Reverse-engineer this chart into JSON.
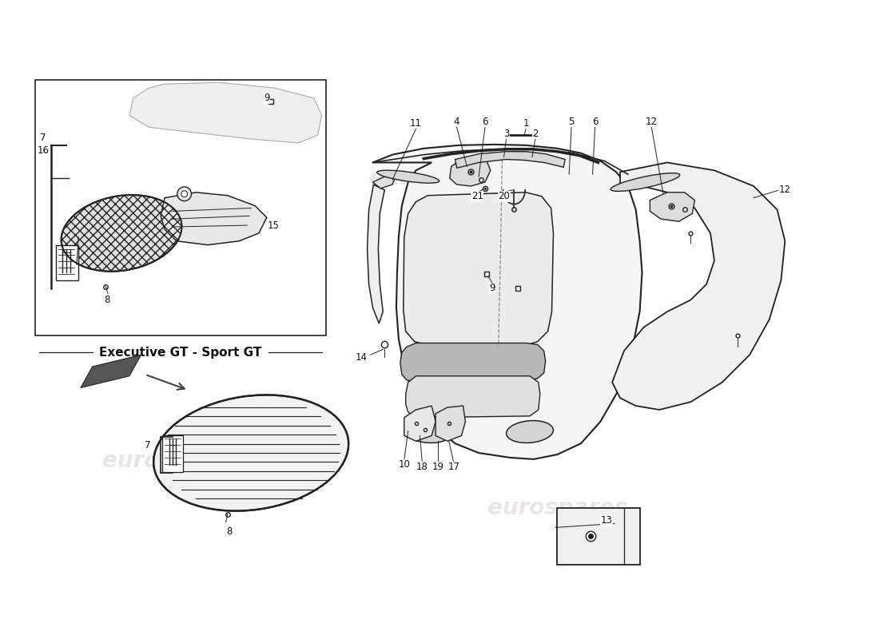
{
  "background_color": "#ffffff",
  "watermark_text": "eurospares",
  "watermark_color": "#c8bfb8",
  "watermark_alpha": 0.38,
  "label_fontsize": 8.5,
  "label_color": "#111111",
  "line_color": "#222222",
  "line_width": 1.0,
  "fig_width": 11.0,
  "fig_height": 8.0,
  "inset_label": "Executive GT - Sport GT"
}
